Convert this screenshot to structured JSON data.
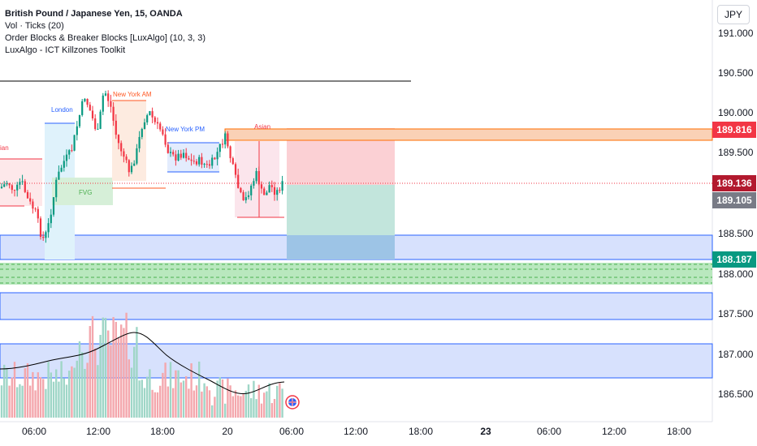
{
  "legend": {
    "symbol_title": "British Pound / Japanese Yen, 15, OANDA",
    "indicator_volume": "Vol · Ticks (20)",
    "indicator_order_blocks": "Order Blocks & Breaker Blocks [LuxAlgo] (10, 3, 3)",
    "indicator_killzones": "LuxAlgo - ICT Killzones Toolkit"
  },
  "currency_button": "JPY",
  "price_axis": {
    "labels": [
      "191.000",
      "190.500",
      "190.000",
      "189.500",
      "188.500",
      "188.000",
      "187.500",
      "187.000",
      "186.500"
    ]
  },
  "price_tags": {
    "upper": {
      "value": "189.816",
      "color": "#f23645"
    },
    "last": {
      "value": "189.136",
      "color": "#b2192e"
    },
    "prev": {
      "value": "189.105",
      "color": "#787b86"
    },
    "lower": {
      "value": "188.187",
      "color": "#089981"
    }
  },
  "time_axis": {
    "labels": [
      "06:00",
      "12:00",
      "18:00",
      "20",
      "06:00",
      "12:00",
      "18:00",
      "23",
      "06:00",
      "12:00",
      "18:00"
    ]
  },
  "killzones": {
    "asian_left": "ian",
    "london": "London",
    "new_york_am": "New York AM",
    "new_york_pm": "New York PM",
    "asian": "Asian",
    "fvg": "FVG"
  },
  "colors": {
    "bull": "#089981",
    "bear": "#f23645",
    "volume_bull": "#9fd6c7",
    "volume_bear": "#f4a7ad",
    "order_block_blue": "#2962ff",
    "fvg_green": "#4caf50"
  }
}
